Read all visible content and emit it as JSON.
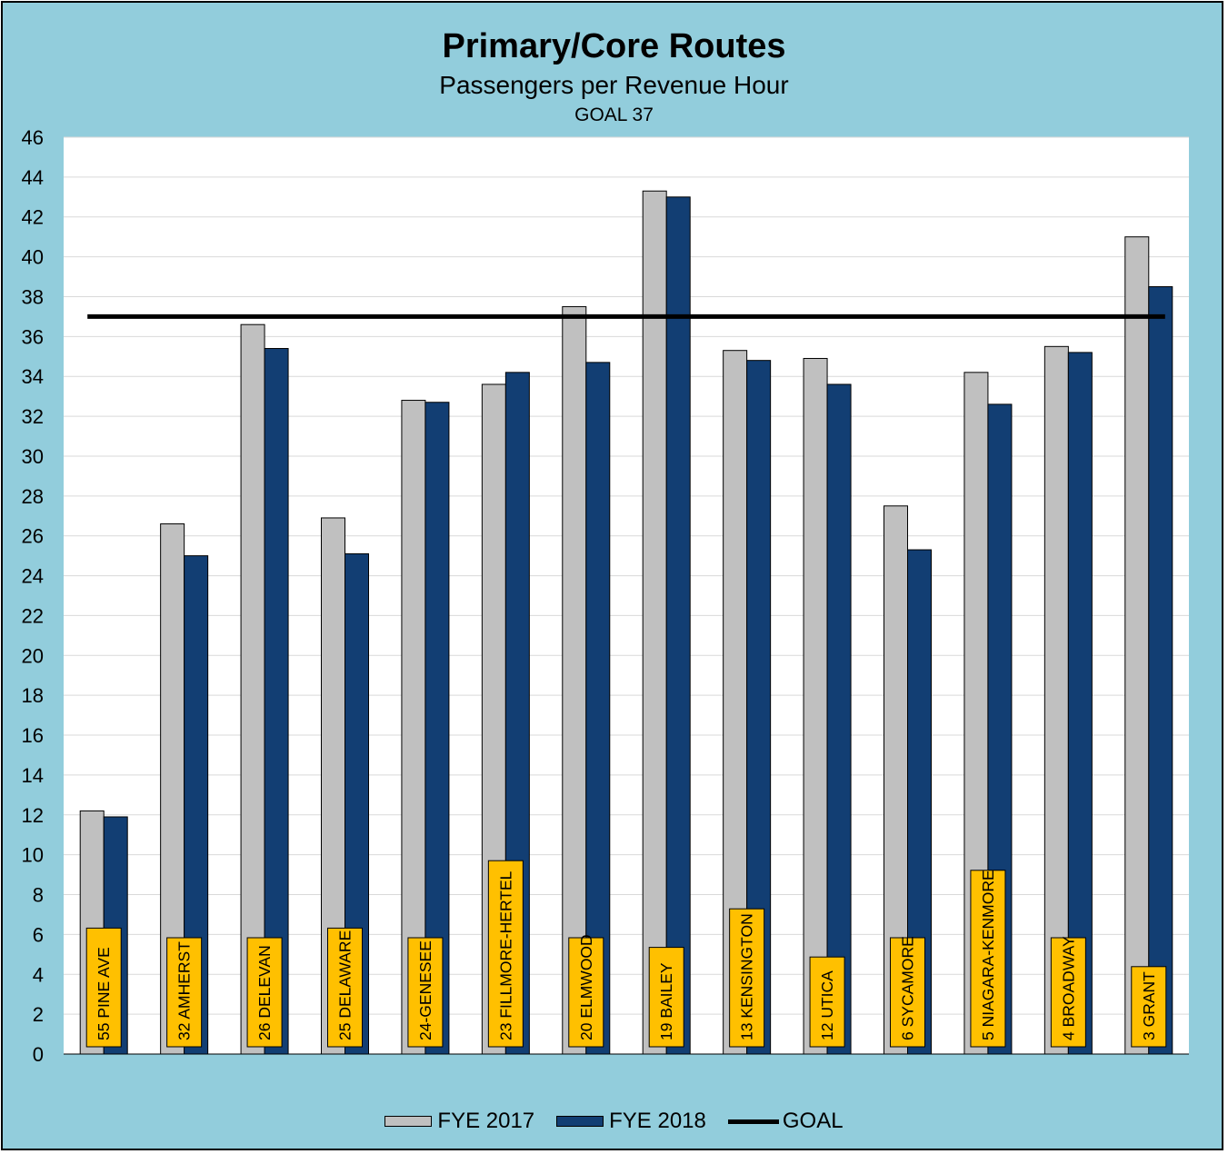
{
  "colors": {
    "background": "#92cddc",
    "plot": "#ffffff",
    "fye2017": "#c0c0c0",
    "fye2018": "#123e73",
    "goal": "#000000",
    "label_box": "#ffc000"
  },
  "chart_data": {
    "type": "bar",
    "title": "Primary/Core Routes",
    "subtitle": "Passengers per Revenue Hour",
    "goal_text": "GOAL 37",
    "categories": [
      "55 PINE AVE",
      "32 AMHERST",
      "26 DELEVAN",
      "25 DELAWARE",
      "24-GENESEE",
      "23 FILLMORE-HERTEL",
      "20 ELMWOOD",
      "19 BAILEY",
      "13 KENSINGTON",
      "12 UTICA",
      "6 SYCAMORE",
      "5 NIAGARA-KENMORE",
      "4 BROADWAY",
      "3 GRANT"
    ],
    "series": [
      {
        "name": "FYE 2017",
        "color": "#c0c0c0",
        "values": [
          12.2,
          26.6,
          36.6,
          26.9,
          32.8,
          33.6,
          37.5,
          43.3,
          35.3,
          34.9,
          27.5,
          34.2,
          35.5,
          41.0
        ]
      },
      {
        "name": "FYE 2018",
        "color": "#123e73",
        "values": [
          11.9,
          25.0,
          35.4,
          25.1,
          32.7,
          34.2,
          34.7,
          43.0,
          34.8,
          33.6,
          25.3,
          32.6,
          35.2,
          38.5
        ]
      }
    ],
    "goal": {
      "name": "GOAL",
      "value": 37
    },
    "ylim": [
      0,
      46
    ],
    "yticks": [
      "0",
      "2",
      "4",
      "6",
      "8",
      "10",
      "12",
      "14",
      "16",
      "18",
      "20",
      "22",
      "24",
      "26",
      "28",
      "30",
      "32",
      "34",
      "36",
      "38",
      "40",
      "42",
      "44",
      "46"
    ],
    "grid": true,
    "legend_position": "bottom"
  }
}
